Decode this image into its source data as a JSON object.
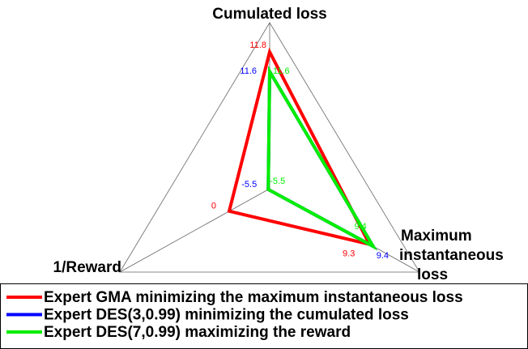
{
  "chart_data": {
    "type": "radar",
    "axes": [
      {
        "label_lines": [
          "Cumulated loss"
        ],
        "lim": [
          10.4,
          12.1
        ]
      },
      {
        "label_lines": [
          "1/Reward"
        ],
        "lim": [
          -5.7,
          15.4
        ]
      },
      {
        "label_lines": [
          "Maximum",
          "instantaneous",
          "loss"
        ],
        "lim": [
          6.5,
          10.7
        ]
      }
    ],
    "series": [
      {
        "name": "Expert GMA minimizing the maximum instantaneous loss",
        "color": "#ff0000",
        "values": [
          11.8,
          0,
          9.3
        ]
      },
      {
        "name": "Expert DES(3,0.99) minimizing the cumulated loss",
        "color": "#0000ff",
        "values": [
          11.6,
          -5.5,
          9.4
        ]
      },
      {
        "name": "Expert DES(7,0.99) maximizing the reward",
        "color": "#00ee00",
        "values": [
          11.6,
          -5.5,
          9.4
        ]
      }
    ]
  }
}
